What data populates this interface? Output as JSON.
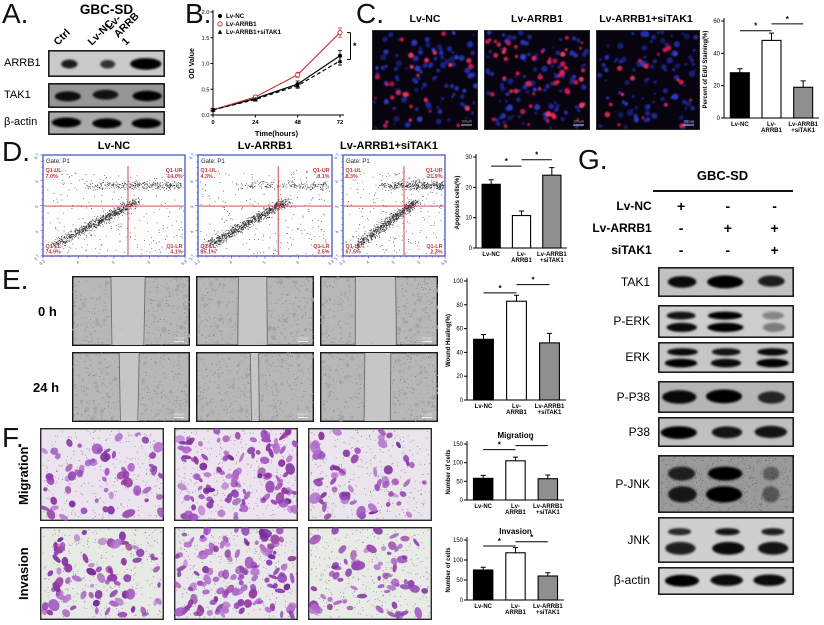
{
  "panelA": {
    "label": "A.",
    "title": "GBC-SD",
    "lane_labels": [
      "Ctrl",
      "Lv-NC",
      "Lv-ARRB1"
    ],
    "blots": [
      {
        "label": "ARRB1",
        "bg": "#cacaca",
        "bands": [
          [
            0.5,
            0.85
          ],
          [
            0.45,
            0.75
          ],
          [
            0.95,
            1
          ]
        ]
      },
      {
        "label": "TAK1",
        "bg": "#969696",
        "bands": [
          [
            0.8,
            0.92
          ],
          [
            0.78,
            0.88
          ],
          [
            0.9,
            1
          ]
        ]
      },
      {
        "label": "β-actin",
        "bg": "#aaaaaa",
        "bands": [
          [
            0.9,
            1
          ],
          [
            0.9,
            1
          ],
          [
            0.9,
            1
          ]
        ]
      }
    ]
  },
  "panelB": {
    "label": "B."
  },
  "panelC": {
    "label": "C.",
    "images": [
      {
        "title": "Lv-NC",
        "red": 26,
        "blue": 95,
        "scale": "100 μm"
      },
      {
        "title": "Lv-ARRB1",
        "red": 55,
        "blue": 100,
        "scale": "100 μm"
      },
      {
        "title": "Lv-ARRB1+siTAK1",
        "red": 17,
        "blue": 92,
        "scale": "100 μm"
      }
    ]
  },
  "panelD": {
    "label": "D.",
    "plots": [
      {
        "title": "Lv-NC",
        "gate": "Gate: P1",
        "main": 850,
        "band": 330,
        "shift": 0,
        "q": {
          "ul": [
            "Q1-UL",
            "7.0%"
          ],
          "ur": [
            "Q1-UR",
            "14.0%"
          ],
          "ll": [
            "Q1-LL",
            "74.9%"
          ],
          "lr": [
            "Q1-LR",
            "4.1%"
          ]
        },
        "x_ticks": [
          "3.3",
          "4",
          "5",
          "6",
          "6.8"
        ],
        "y_ticks": [
          "6.7",
          "6",
          "5",
          "4",
          "3.7"
        ]
      },
      {
        "title": "Lv-ARRB1",
        "gate": "Gate: P1",
        "main": 950,
        "band": 200,
        "shift": 0,
        "q": {
          "ul": [
            "Q1-UL",
            "4.3%"
          ],
          "ur": [
            "Q1-UR",
            "8.1%"
          ],
          "ll": [
            "Q1-LL",
            "85.1%"
          ],
          "lr": [
            "Q1-LR",
            "2.5%"
          ]
        },
        "x_ticks": [
          "3.3",
          "4",
          "5",
          "6",
          "6.8"
        ],
        "y_ticks": [
          "6.7",
          "6",
          "5",
          "4",
          "3.7"
        ]
      },
      {
        "title": "Lv-ARRB1+siTAK1",
        "gate": "Gate: P1",
        "main": 800,
        "band": 430,
        "shift": 0.06,
        "q": {
          "ul": [
            "Q1-UL",
            "8.3%"
          ],
          "ur": [
            "Q1-UR",
            "21.9%"
          ],
          "ll": [
            "Q1-LL",
            "67.5%"
          ],
          "lr": [
            "Q1-LR",
            "2.3%"
          ]
        },
        "x_ticks": [
          "3.3",
          "4",
          "5",
          "6",
          "6.8"
        ],
        "y_ticks": [
          "6.7",
          "6",
          "5",
          "4",
          "3.7"
        ]
      }
    ]
  },
  "panelE": {
    "label": "E.",
    "row_labels": [
      "0 h",
      "24 h"
    ],
    "images": [
      {
        "gap": [
          0.33,
          0.62
        ],
        "scale": "100 μm"
      },
      {
        "gap": [
          0.36,
          0.6
        ],
        "scale": "100 μm"
      },
      {
        "gap": [
          0.3,
          0.64
        ],
        "scale": "100 μm"
      },
      {
        "gap": [
          0.4,
          0.57
        ],
        "scale": "100 μm"
      },
      {
        "gap": [
          0.46,
          0.53
        ],
        "scale": "100 μm"
      },
      {
        "gap": [
          0.38,
          0.6
        ],
        "scale": "100 μm"
      }
    ]
  },
  "panelF": {
    "label": "F.",
    "row_labels": [
      "Migration",
      "Invasion"
    ],
    "images": [
      {
        "density": 55,
        "bg": "#ebe4ee"
      },
      {
        "density": 105,
        "bg": "#ece3ef"
      },
      {
        "density": 50,
        "bg": "#eae4ec"
      },
      {
        "density": 68,
        "bg": "#e7eae4"
      },
      {
        "density": 115,
        "bg": "#e9e7ea"
      },
      {
        "density": 58,
        "bg": "#e8eae6"
      }
    ]
  },
  "panelG": {
    "label": "G.",
    "title": "GBC-SD",
    "conditions": [
      {
        "label": "Lv-NC",
        "values": [
          "+",
          "-",
          "-"
        ]
      },
      {
        "label": "Lv-ARRB1",
        "values": [
          "-",
          "+",
          "+"
        ]
      },
      {
        "label": "siTAK1",
        "values": [
          "-",
          "-",
          "+"
        ]
      }
    ],
    "blots": [
      {
        "label": "TAK1",
        "bg": "#c2c2c2",
        "bands": [
          [
            0.75,
            0.95
          ],
          [
            0.95,
            1
          ],
          [
            0.7,
            0.85
          ]
        ]
      },
      {
        "label": "P-ERK",
        "bg": "#cdcdcd",
        "double": true,
        "bands": [
          [
            0.8,
            0.9
          ],
          [
            0.95,
            1
          ],
          [
            0.6,
            0.35
          ]
        ]
      },
      {
        "label": "ERK",
        "bg": "#c6c6c6",
        "double": true,
        "bands": [
          [
            0.85,
            0.95
          ],
          [
            0.8,
            0.9
          ],
          [
            0.85,
            0.95
          ]
        ]
      },
      {
        "label": "P-P38",
        "bg": "#b5b5b5",
        "bands": [
          [
            0.9,
            0.95
          ],
          [
            0.95,
            1
          ],
          [
            0.72,
            0.8
          ]
        ]
      },
      {
        "label": "P38",
        "bg": "#c0c0c0",
        "bands": [
          [
            0.95,
            1
          ],
          [
            0.8,
            0.9
          ],
          [
            0.85,
            0.9
          ]
        ]
      },
      {
        "label": "P-JNK",
        "bg": "#9a9a9a",
        "double": true,
        "noisy": true,
        "bands": [
          [
            0.75,
            0.8
          ],
          [
            0.95,
            1
          ],
          [
            0.45,
            0.4
          ]
        ]
      },
      {
        "label": "JNK",
        "bg": "#cfcfcf",
        "double": true,
        "top_small": true,
        "bands": [
          [
            0.8,
            0.8
          ],
          [
            0.85,
            0.9
          ],
          [
            0.8,
            0.85
          ]
        ]
      },
      {
        "label": "β-actin",
        "bg": "#d2d2d2",
        "bands": [
          [
            0.9,
            1
          ],
          [
            0.85,
            0.95
          ],
          [
            0.85,
            0.95
          ]
        ]
      }
    ]
  },
  "chart_data": [
    {
      "type": "line",
      "x": [
        0,
        24,
        48,
        72
      ],
      "series": [
        {
          "name": "Lv-NC",
          "color": "#000000",
          "dash": "",
          "marker": "circle",
          "values": [
            0.1,
            0.32,
            0.6,
            1.15
          ],
          "errors": [
            0.02,
            0.03,
            0.06,
            0.1
          ]
        },
        {
          "name": "Lv-ARRB1",
          "color": "#c8373e",
          "dash": "",
          "marker": "circle-open",
          "values": [
            0.1,
            0.35,
            0.78,
            1.6
          ],
          "errors": [
            0.02,
            0.03,
            0.05,
            0.09
          ]
        },
        {
          "name": "Lv-ARRB1+siTAK1",
          "color": "#000000",
          "dash": "4,2.5",
          "marker": "triangle",
          "values": [
            0.1,
            0.3,
            0.57,
            1.05
          ],
          "errors": [
            0.02,
            0.03,
            0.05,
            0.08
          ]
        }
      ],
      "xlabel": "Time(hours)",
      "ylabel": "OD Value",
      "ylim": [
        0,
        2.0
      ],
      "yticks": [
        0,
        0.5,
        1,
        1.5,
        2
      ],
      "ytick_labels": [
        "0.0",
        "0.5",
        "1.0",
        "1.5",
        "2.0"
      ],
      "sig": "*",
      "sig_span": [
        1.6,
        1.08
      ]
    },
    {
      "type": "bar",
      "title": "",
      "ylabel": "Percent of EdU Staining(%)",
      "categories": [
        [
          "Lv-NC"
        ],
        [
          "Lv-",
          "ARRB1"
        ],
        [
          "Lv-ARRB1",
          "+siTAK1"
        ]
      ],
      "values": [
        28,
        48,
        19
      ],
      "errors": [
        2.5,
        4.5,
        4
      ],
      "colors": [
        "#000000",
        "#ffffff",
        "#8f8f8f"
      ],
      "ylim": [
        0,
        60
      ],
      "yticks": [
        0,
        20,
        40,
        60
      ],
      "sig": [
        {
          "pair": [
            0,
            1
          ],
          "label": "*"
        },
        {
          "pair": [
            1,
            2
          ],
          "label": "*"
        }
      ]
    },
    {
      "type": "bar",
      "title": "",
      "ylabel": "Apoptosis cells(%)",
      "categories": [
        [
          "Lv-NC"
        ],
        [
          "Lv-",
          "ARRB1"
        ],
        [
          "Lv-ARRB1",
          "+siTAK1"
        ]
      ],
      "values": [
        21,
        10.7,
        24
      ],
      "errors": [
        1.5,
        1.5,
        2.5
      ],
      "colors": [
        "#000000",
        "#ffffff",
        "#8f8f8f"
      ],
      "ylim": [
        0,
        30
      ],
      "yticks": [
        0,
        10,
        20,
        30
      ],
      "sig": [
        {
          "pair": [
            0,
            1
          ],
          "label": "*"
        },
        {
          "pair": [
            1,
            2
          ],
          "label": "*"
        }
      ]
    },
    {
      "type": "bar",
      "title": "",
      "ylabel": "Wound Healing(%)",
      "categories": [
        [
          "Lv-NC"
        ],
        [
          "Lv-",
          "ARRB1"
        ],
        [
          "Lv-ARRB1",
          "+siTAK1"
        ]
      ],
      "values": [
        51,
        83,
        48
      ],
      "errors": [
        4,
        5,
        8
      ],
      "colors": [
        "#000000",
        "#ffffff",
        "#8f8f8f"
      ],
      "ylim": [
        0,
        100
      ],
      "yticks": [
        0,
        20,
        40,
        60,
        80,
        100
      ],
      "sig": [
        {
          "pair": [
            0,
            1
          ],
          "label": "*"
        },
        {
          "pair": [
            1,
            2
          ],
          "label": "*"
        }
      ]
    },
    {
      "type": "bar",
      "title": "Migration",
      "ylabel": "Number of cells",
      "categories": [
        [
          "Lv-NC"
        ],
        [
          "Lv-",
          "ARRB1"
        ],
        [
          "Lv-ARRB1",
          "+siTAK1"
        ]
      ],
      "values": [
        58,
        105,
        57
      ],
      "errors": [
        8,
        10,
        10
      ],
      "colors": [
        "#000000",
        "#ffffff",
        "#8f8f8f"
      ],
      "ylim": [
        0,
        150
      ],
      "yticks": [
        0,
        50,
        100,
        150
      ],
      "sig": [
        {
          "pair": [
            0,
            1
          ],
          "label": "*"
        },
        {
          "pair": [
            1,
            2
          ],
          "label": "*"
        }
      ]
    },
    {
      "type": "bar",
      "title": "Invasion",
      "ylabel": "Number of cells",
      "categories": [
        [
          "Lv-NC"
        ],
        [
          "Lv-",
          "ARRB1"
        ],
        [
          "Lv-ARRB1",
          "+siTAK1"
        ]
      ],
      "values": [
        75,
        118,
        60
      ],
      "errors": [
        7,
        13,
        8
      ],
      "colors": [
        "#000000",
        "#ffffff",
        "#8f8f8f"
      ],
      "ylim": [
        0,
        150
      ],
      "yticks": [
        0,
        50,
        100,
        150
      ],
      "sig": [
        {
          "pair": [
            0,
            1
          ],
          "label": "*"
        },
        {
          "pair": [
            1,
            2
          ],
          "label": "*"
        }
      ]
    }
  ]
}
